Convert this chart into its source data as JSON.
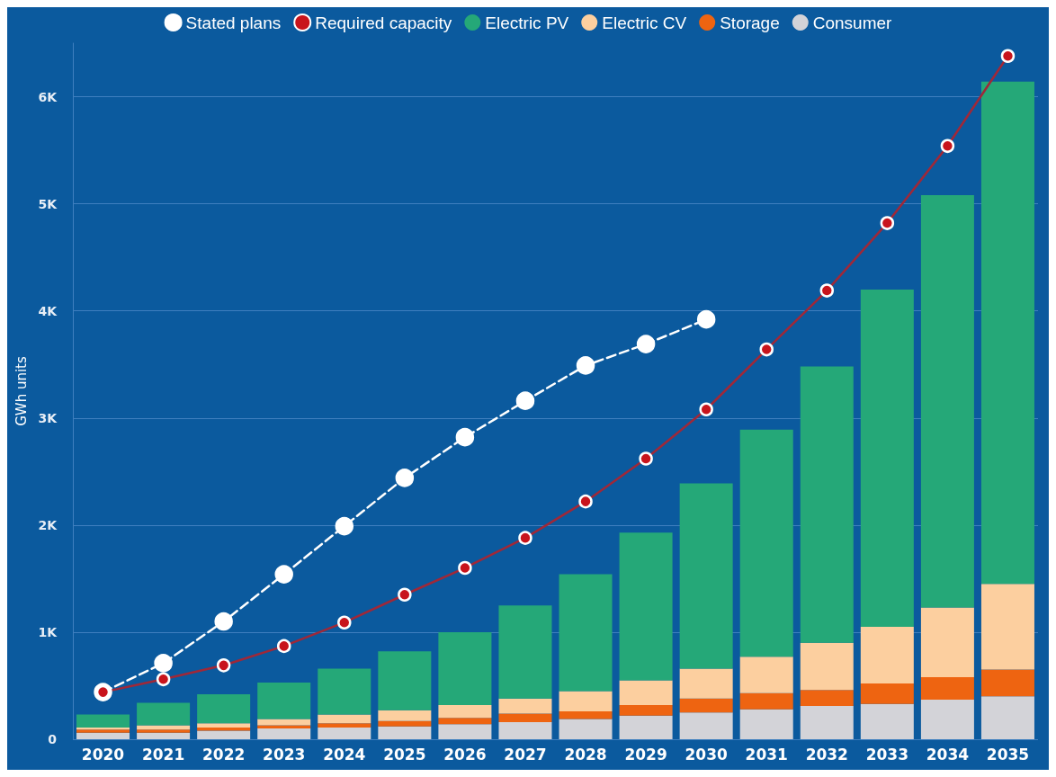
{
  "chart_data": {
    "type": "bar",
    "stacked": true,
    "ylabel": "GWh units",
    "categories": [
      "2020",
      "2021",
      "2022",
      "2023",
      "2024",
      "2025",
      "2026",
      "2027",
      "2028",
      "2029",
      "2030",
      "2031",
      "2032",
      "2033",
      "2034",
      "2035"
    ],
    "ylim": [
      0,
      6500
    ],
    "yticks": [
      0,
      {
        "value": 1000,
        "label": "1K"
      },
      {
        "value": 2000,
        "label": "2K"
      },
      {
        "value": 3000,
        "label": "3K"
      },
      {
        "value": 4000,
        "label": "4K"
      },
      {
        "value": 5000,
        "label": "5K"
      },
      {
        "value": 6000,
        "label": "6K"
      }
    ],
    "grid": "y",
    "legend": "top",
    "marker": "circle",
    "series": [
      {
        "name": "Consumer",
        "color": "#d3d3d8",
        "values": [
          60,
          60,
          80,
          100,
          110,
          120,
          140,
          160,
          190,
          220,
          250,
          280,
          310,
          330,
          370,
          400
        ]
      },
      {
        "name": "Storage",
        "color": "#ee6411",
        "values": [
          30,
          30,
          30,
          30,
          40,
          50,
          60,
          80,
          70,
          100,
          130,
          150,
          150,
          190,
          210,
          250
        ]
      },
      {
        "name": "Electric CV",
        "color": "#fccf9f",
        "values": [
          20,
          40,
          40,
          60,
          80,
          100,
          120,
          140,
          190,
          230,
          280,
          340,
          440,
          530,
          650,
          800
        ]
      },
      {
        "name": "Electric PV",
        "color": "#25a878",
        "values": [
          120,
          210,
          270,
          340,
          430,
          550,
          680,
          870,
          1090,
          1380,
          1730,
          2120,
          2580,
          3150,
          3850,
          4690
        ]
      },
      {
        "name": "Stated plans",
        "type": "line",
        "line_style": "dashed",
        "color": "#ffffff",
        "values": [
          440,
          710,
          1100,
          1540,
          1990,
          2440,
          2820,
          3160,
          3490,
          3690,
          3920,
          null,
          null,
          null,
          null,
          null
        ]
      },
      {
        "name": "Required capacity",
        "type": "line",
        "line_style": "solid",
        "color": "#c8141c",
        "values": [
          440,
          560,
          690,
          870,
          1090,
          1350,
          1600,
          1880,
          2220,
          2620,
          3080,
          3640,
          4190,
          4820,
          5540,
          6380
        ]
      }
    ]
  }
}
